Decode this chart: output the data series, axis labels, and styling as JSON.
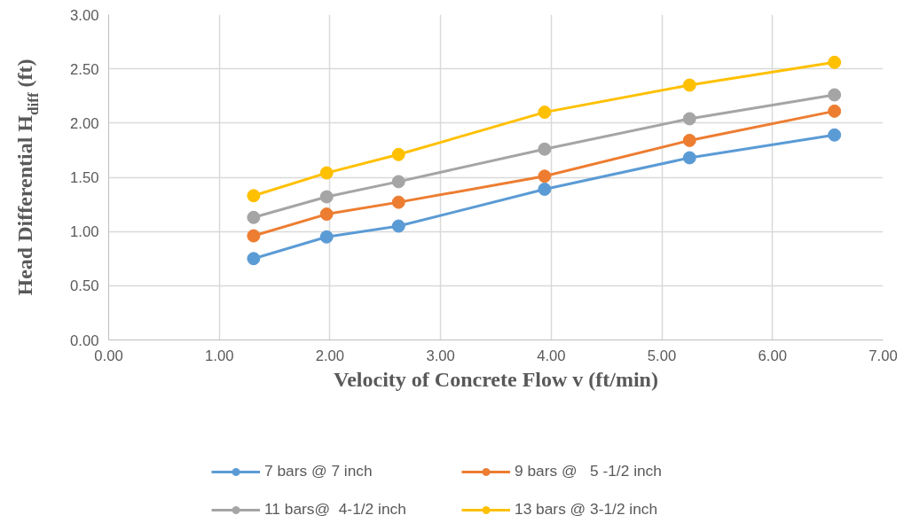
{
  "chart_data": {
    "type": "line",
    "xlabel": "Velocity of Concrete Flow v (ft/min)",
    "ylabel": "Head Differential H$_{diff}$ (ft)",
    "x": [
      1.31,
      1.97,
      2.62,
      3.94,
      5.25,
      6.56
    ],
    "series": [
      {
        "name": "7 bars @ 7 inch",
        "color": "#5b9bd5",
        "values": [
          0.75,
          0.95,
          1.05,
          1.39,
          1.68,
          1.89
        ]
      },
      {
        "name": "9 bars @   5 -1/2 inch",
        "color": "#ed7d31",
        "values": [
          0.96,
          1.16,
          1.27,
          1.51,
          1.84,
          2.11
        ]
      },
      {
        "name": "11 bars@  4-1/2 inch",
        "color": "#a5a5a5",
        "values": [
          1.13,
          1.32,
          1.46,
          1.76,
          2.04,
          2.26
        ]
      },
      {
        "name": "13 bars @ 3-1/2 inch",
        "color": "#ffc000",
        "values": [
          1.33,
          1.54,
          1.71,
          2.1,
          2.35,
          2.56
        ]
      }
    ],
    "xlim": [
      0,
      7
    ],
    "xticks": [
      {
        "value": 0,
        "label": "0.00"
      },
      {
        "value": 1,
        "label": "1.00"
      },
      {
        "value": 2,
        "label": "2.00"
      },
      {
        "value": 3,
        "label": "3.00"
      },
      {
        "value": 4,
        "label": "4.00"
      },
      {
        "value": 5,
        "label": "5.00"
      },
      {
        "value": 6,
        "label": "6.00"
      },
      {
        "value": 7,
        "label": "7.00"
      }
    ],
    "ylim": [
      0,
      3
    ],
    "yticks": [
      {
        "value": 0,
        "label": "0.00"
      },
      {
        "value": 0.5,
        "label": "0.50"
      },
      {
        "value": 1,
        "label": "1.00"
      },
      {
        "value": 1.5,
        "label": "1.50"
      },
      {
        "value": 2,
        "label": "2.00"
      },
      {
        "value": 2.5,
        "label": "2.50"
      },
      {
        "value": 3,
        "label": "3.00"
      }
    ],
    "grid": true,
    "legend": "bottom",
    "marker": "circle",
    "line_style": "solid"
  }
}
